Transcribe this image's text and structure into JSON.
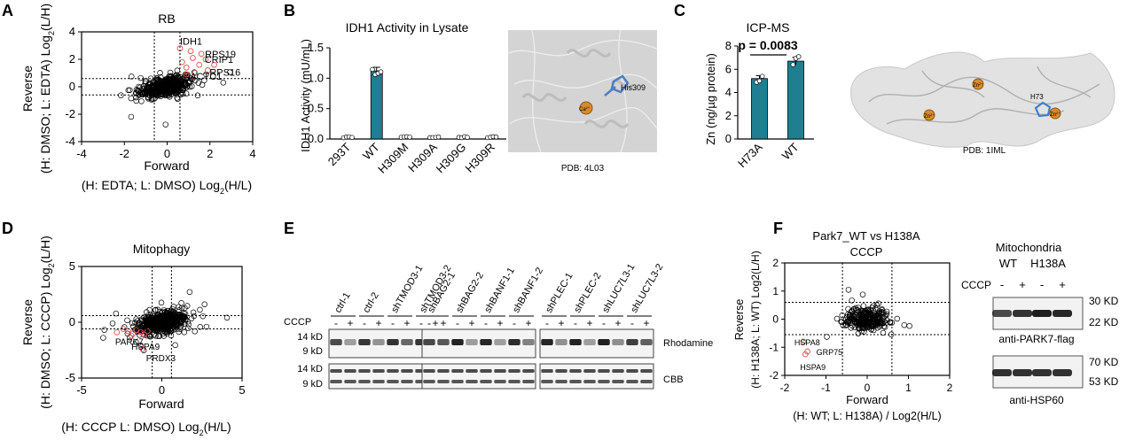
{
  "panel_letters": [
    "A",
    "B",
    "C",
    "D",
    "E",
    "F"
  ],
  "colors": {
    "teal": "#1f7f91",
    "red": "#e05050",
    "black": "#000000",
    "gray": "#9a9a9a"
  },
  "panelA": {
    "chart_data": {
      "type": "scatter",
      "title": "RB",
      "xlabel": "Forward",
      "xlabel2_pre": "(H:  EDTA; L: DMSO) Log",
      "xlabel2_sub": "2",
      "xlabel2_post": "(H/L)",
      "ylabel": "Reverse",
      "ylabel2_pre": "(H: DMSO; L: EDTA) Log",
      "ylabel2_sub": "2",
      "ylabel2_post": "(L/H)",
      "xlim": [
        -4,
        4
      ],
      "ylim": [
        -4,
        4
      ],
      "xticks": [
        "-4",
        "-2",
        "0",
        "2",
        "4"
      ],
      "yticks": [
        "-4",
        "-2",
        "0",
        "2",
        "4"
      ],
      "highlights": [
        {
          "label": "IDH1",
          "x": 0.6,
          "y": 2.8
        },
        {
          "label": "RPS19",
          "x": 1.6,
          "y": 2.4
        },
        {
          "label": "CRIP1",
          "x": 1.5,
          "y": 1.6
        },
        {
          "label": "RPS16",
          "x": 1.9,
          "y": 1.2
        },
        {
          "label": "ACTC1",
          "x": 0.9,
          "y": 0.9
        }
      ]
    }
  },
  "panelB": {
    "chart_data": {
      "type": "bar",
      "title": "IDH1 Activity in Lysate",
      "ylabel": "IDH1 Activity (mU/mL)",
      "categories": [
        "293T",
        "WT",
        "H309M",
        "H309A",
        "H309G",
        "H309R"
      ],
      "values": [
        0.03,
        1.12,
        0.03,
        0.03,
        0.03,
        0.03
      ],
      "ylim": [
        0,
        1.5
      ],
      "yticks": [
        "0.0",
        "0.5",
        "1.0",
        "1.5"
      ]
    },
    "structure": {
      "caption": "PDB: 4L03",
      "residue": "His309",
      "ion": "Ca",
      "ion_sup": "2+"
    }
  },
  "panelC": {
    "chart_data": {
      "type": "bar",
      "title": "ICP-MS",
      "annotation": "p = 0.0083",
      "ylabel": "Zn (ng/µg protein)",
      "categories": [
        "H73A",
        "WT"
      ],
      "values": [
        5.2,
        6.7
      ],
      "ylim": [
        0,
        8
      ],
      "yticks": [
        "0",
        "2",
        "4",
        "6",
        "8"
      ]
    },
    "structure": {
      "caption": "PDB: 1IML",
      "residue": "H73",
      "ion": "Zn",
      "ion_sup": "2+"
    }
  },
  "panelD": {
    "chart_data": {
      "type": "scatter",
      "title": "Mitophagy",
      "xlabel": "Forward",
      "xlabel2_pre": "(H:  CCCP L: DMSO) Log",
      "xlabel2_sub": "2",
      "xlabel2_post": "(H/L)",
      "ylabel": "Reverse",
      "ylabel2_pre": "(H: DMSO; L: CCCP) Log",
      "ylabel2_sub": "2",
      "ylabel2_post": "(L/H)",
      "xlim": [
        -5,
        5
      ],
      "ylim": [
        -5,
        5
      ],
      "xticks": [
        "-5",
        "0",
        "5"
      ],
      "yticks": [
        "-5",
        "0",
        "5"
      ],
      "highlights": [
        {
          "label": "PARK7",
          "x": -2.8,
          "y": -0.9
        },
        {
          "label": "HSPA9",
          "x": -1.9,
          "y": -1.2
        },
        {
          "label": "PRDX3",
          "x": -1.2,
          "y": -2.4
        }
      ]
    }
  },
  "panelE": {
    "groups": [
      {
        "lanes": [
          "ctrl-1",
          "ctrl-2",
          "shTMOD3-1",
          "shTMOD3-2"
        ]
      },
      {
        "lanes": [
          "shBAG2-1",
          "shBAG2-2",
          "shBANF1-1",
          "shBANF1-2"
        ]
      },
      {
        "lanes": [
          "shPLEC-1",
          "shPLEC-2",
          "shLUC7L3-1",
          "shLUC7L3-2"
        ]
      }
    ],
    "cccp_label": "CCCP",
    "signs": [
      "-",
      "+"
    ],
    "markers": [
      "14 kD",
      "9 kD"
    ],
    "blot_labels": [
      "Rhodamine",
      "CBB"
    ]
  },
  "panelF": {
    "chart_data": {
      "type": "scatter",
      "title": "Park7_WT vs H138A",
      "subtitle": "CCCP",
      "xlabel": "Forward",
      "xlabel2": "(H: WT; L: H138A) / Log2(H/L)",
      "ylabel": "Reverse",
      "ylabel2": "(H: H138A; L: WT) Log2(L/H)",
      "xlim": [
        -2,
        2
      ],
      "ylim": [
        -2,
        2
      ],
      "xticks": [
        "-2",
        "-1",
        "0",
        "1",
        "2"
      ],
      "yticks": [
        "-2",
        "-1",
        "0",
        "1",
        "2"
      ],
      "highlights": [
        {
          "label": "HSPA8",
          "x": -1.55,
          "y": -0.8
        },
        {
          "label": "GRP75",
          "x": -1.45,
          "y": -1.15
        },
        {
          "label": "HSPA9",
          "x": -1.5,
          "y": -1.25
        }
      ]
    },
    "western": {
      "title": "Mitochondria",
      "conditions": [
        "WT",
        "H138A"
      ],
      "cccp_label": "CCCP",
      "signs": [
        "-",
        "+",
        "-",
        "+"
      ],
      "blot1": {
        "label": "anti-PARK7-flag",
        "markers": [
          "30 KD",
          "22 KD"
        ]
      },
      "blot2": {
        "label": "anti-HSP60",
        "markers": [
          "70 KD",
          "53 KD"
        ]
      }
    }
  }
}
